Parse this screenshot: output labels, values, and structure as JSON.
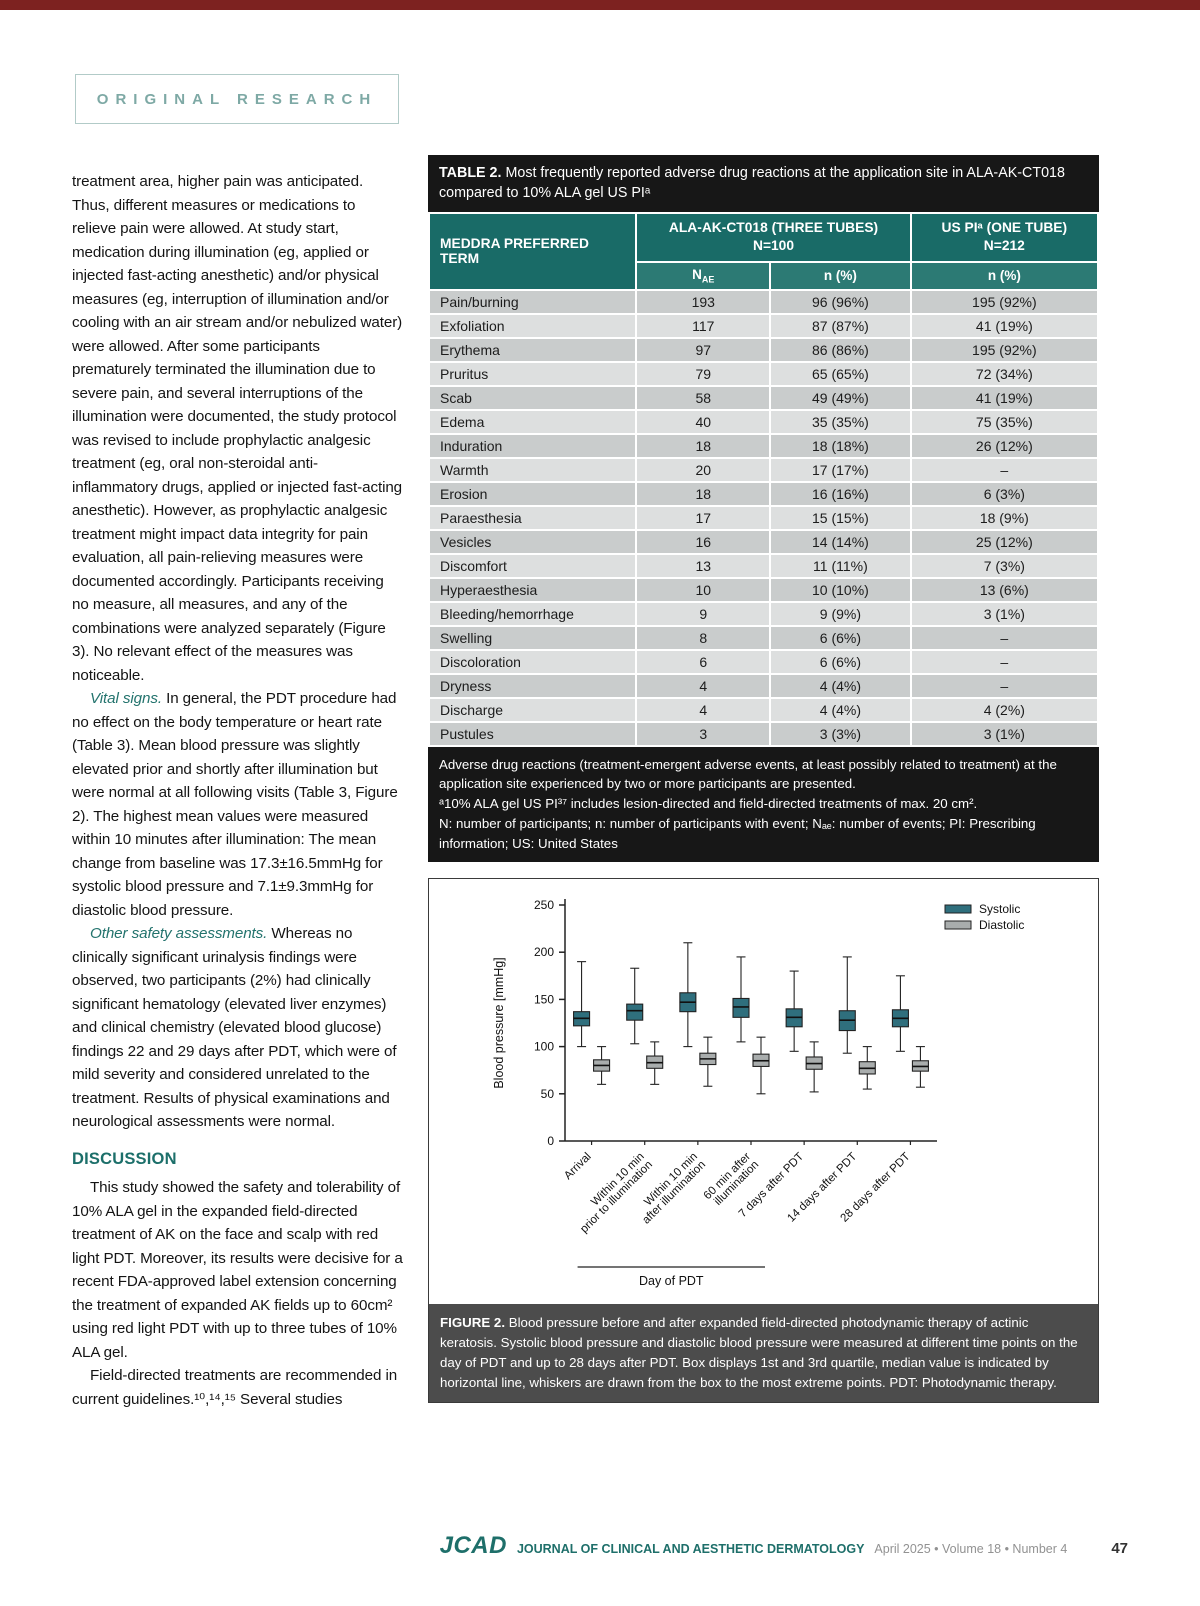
{
  "masthead": {
    "section_label": "ORIGINAL RESEARCH"
  },
  "article": {
    "p1": "treatment area, higher pain was anticipated. Thus, different measures or medications to relieve pain were allowed. At study start, medication during illumination (eg, applied or injected fast-acting anesthetic) and/or physical measures (eg, interruption of illumination and/or cooling with an air stream and/or nebulized water) were allowed. After some participants prematurely terminated the illumination due to severe pain, and several interruptions of the illumination were documented, the study protocol was revised to include prophylactic analgesic treatment (eg, oral non-steroidal anti-inflammatory drugs, applied or injected fast-acting anesthetic). However, as prophylactic analgesic treatment might impact data integrity for pain evaluation, all pain-relieving measures were documented accordingly. Participants receiving no measure, all measures, and any of the combinations were analyzed separately (Figure 3). No relevant effect of the measures was noticeable.",
    "p2_lead": "Vital signs.",
    "p2_text": " In general, the PDT procedure had no effect on the body temperature or heart rate (Table 3). Mean blood pressure was slightly elevated prior and shortly after illumination but were normal at all following visits (Table 3, Figure 2). The highest mean values were measured within 10 minutes after illumination: The mean change from baseline was 17.3±16.5mmHg for systolic blood pressure and 7.1±9.3mmHg for diastolic blood pressure.",
    "p3_lead": "Other safety assessments.",
    "p3_text": " Whereas no clinically significant urinalysis findings were observed, two participants (2%) had clinically significant hematology (elevated liver enzymes) and clinical chemistry (elevated blood glucose) findings 22 and 29 days after PDT, which were of mild severity and considered unrelated to the treatment. Results of physical examinations and neurological assessments were normal.",
    "discussion_heading": "DISCUSSION",
    "p4": "This study showed the safety and tolerability of 10% ALA gel in the expanded field-directed treatment of AK on the face and scalp with red light PDT. Moreover, its results were decisive for a recent FDA-approved label extension concerning the treatment of expanded AK fields up to 60cm² using red light PDT with up to three tubes of 10% ALA gel.",
    "p5": "Field-directed treatments are recommended in current guidelines.¹⁰,¹⁴,¹⁵ Several studies"
  },
  "table2": {
    "title_label": "TABLE 2.",
    "title_text": " Most frequently reported adverse drug reactions at the application site in ALA-AK-CT018 compared to 10% ALA gel US PIᵃ",
    "term_header": "MEDDRA PREFERRED TERM",
    "group1_line1": "ALA-AK-CT018 (THREE TUBES)",
    "group1_line2": "N=100",
    "group2_line1": "US PIᵃ (ONE TUBE)",
    "group2_line2": "N=212",
    "sub_n": "N",
    "sub_ae": "AE",
    "sub_npct1": "n (%)",
    "sub_npct2": "n (%)",
    "rows": [
      {
        "term": "Pain/burning",
        "nae": "193",
        "n1": "96 (96%)",
        "n2": "195 (92%)"
      },
      {
        "term": "Exfoliation",
        "nae": "117",
        "n1": "87 (87%)",
        "n2": "41 (19%)"
      },
      {
        "term": "Erythema",
        "nae": "97",
        "n1": "86 (86%)",
        "n2": "195 (92%)"
      },
      {
        "term": "Pruritus",
        "nae": "79",
        "n1": "65 (65%)",
        "n2": "72 (34%)"
      },
      {
        "term": "Scab",
        "nae": "58",
        "n1": "49 (49%)",
        "n2": "41 (19%)"
      },
      {
        "term": "Edema",
        "nae": "40",
        "n1": "35 (35%)",
        "n2": "75 (35%)"
      },
      {
        "term": "Induration",
        "nae": "18",
        "n1": "18 (18%)",
        "n2": "26 (12%)"
      },
      {
        "term": "Warmth",
        "nae": "20",
        "n1": "17 (17%)",
        "n2": "–"
      },
      {
        "term": "Erosion",
        "nae": "18",
        "n1": "16 (16%)",
        "n2": "6 (3%)"
      },
      {
        "term": "Paraesthesia",
        "nae": "17",
        "n1": "15 (15%)",
        "n2": "18 (9%)"
      },
      {
        "term": "Vesicles",
        "nae": "16",
        "n1": "14 (14%)",
        "n2": "25 (12%)"
      },
      {
        "term": "Discomfort",
        "nae": "13",
        "n1": "11 (11%)",
        "n2": "7 (3%)"
      },
      {
        "term": "Hyperaesthesia",
        "nae": "10",
        "n1": "10 (10%)",
        "n2": "13 (6%)"
      },
      {
        "term": "Bleeding/hemorrhage",
        "nae": "9",
        "n1": "9 (9%)",
        "n2": "3 (1%)"
      },
      {
        "term": "Swelling",
        "nae": "8",
        "n1": "6 (6%)",
        "n2": "–"
      },
      {
        "term": "Discoloration",
        "nae": "6",
        "n1": "6 (6%)",
        "n2": "–"
      },
      {
        "term": "Dryness",
        "nae": "4",
        "n1": "4 (4%)",
        "n2": "–"
      },
      {
        "term": "Discharge",
        "nae": "4",
        "n1": "4 (4%)",
        "n2": "4 (2%)"
      },
      {
        "term": "Pustules",
        "nae": "3",
        "n1": "3 (3%)",
        "n2": "3 (1%)"
      }
    ],
    "footnote1": "Adverse drug reactions (treatment-emergent adverse events, at least possibly related to treatment) at the application site experienced by two or more participants are presented.",
    "footnote2": "ᵃ10% ALA gel US PI³⁷ includes lesion-directed and field-directed treatments of max. 20 cm².",
    "footnote3": "N: number of participants; n: number of participants with event; Nₐₑ: number of events; PI: Prescribing information; US: United States"
  },
  "figure2": {
    "caption_label": "FIGURE 2.",
    "caption_text": " Blood pressure before and after expanded field-directed photodynamic therapy of actinic keratosis. Systolic blood pressure and diastolic blood pressure were measured at different time points on the day of PDT and up to 28 days after PDT. Box displays 1st and 3rd quartile, median value is indicated by horizontal line, whiskers are drawn from the box to the most extreme points. PDT: Photodynamic therapy."
  },
  "chart_data": {
    "type": "boxplot",
    "ylabel": "Blood pressure [mmHg]",
    "ylim": [
      0,
      250
    ],
    "yticks": [
      0,
      50,
      100,
      150,
      200,
      250
    ],
    "xlabel": "Day of PDT",
    "xlabel_bracket_span": [
      0,
      3
    ],
    "grid": false,
    "legend_position": "top-right",
    "categories": [
      [
        "Arrival"
      ],
      [
        "Within 10 min",
        "prior to illumination"
      ],
      [
        "Within 10 min",
        "after illumination"
      ],
      [
        "60 min after",
        "illumination"
      ],
      [
        "7 days after PDT"
      ],
      [
        "14 days after PDT"
      ],
      [
        "28 days after PDT"
      ]
    ],
    "series": [
      {
        "name": "Systolic",
        "color": "#2f6f7d",
        "boxes": [
          {
            "low": 100,
            "q1": 122,
            "median": 130,
            "q3": 137,
            "high": 190
          },
          {
            "low": 103,
            "q1": 128,
            "median": 138,
            "q3": 145,
            "high": 183
          },
          {
            "low": 100,
            "q1": 137,
            "median": 147,
            "q3": 157,
            "high": 210
          },
          {
            "low": 105,
            "q1": 131,
            "median": 142,
            "q3": 151,
            "high": 195
          },
          {
            "low": 95,
            "q1": 121,
            "median": 131,
            "q3": 140,
            "high": 180
          },
          {
            "low": 93,
            "q1": 117,
            "median": 128,
            "q3": 138,
            "high": 195
          },
          {
            "low": 95,
            "q1": 121,
            "median": 130,
            "q3": 139,
            "high": 175
          }
        ]
      },
      {
        "name": "Diastolic",
        "color": "#a9adad",
        "boxes": [
          {
            "low": 60,
            "q1": 74,
            "median": 80,
            "q3": 86,
            "high": 100
          },
          {
            "low": 60,
            "q1": 77,
            "median": 83,
            "q3": 90,
            "high": 105
          },
          {
            "low": 58,
            "q1": 81,
            "median": 87,
            "q3": 93,
            "high": 110
          },
          {
            "low": 50,
            "q1": 79,
            "median": 85,
            "q3": 92,
            "high": 110
          },
          {
            "low": 52,
            "q1": 76,
            "median": 82,
            "q3": 89,
            "high": 105
          },
          {
            "low": 55,
            "q1": 71,
            "median": 77,
            "q3": 84,
            "high": 100
          },
          {
            "low": 57,
            "q1": 74,
            "median": 79,
            "q3": 85,
            "high": 100
          }
        ]
      }
    ]
  },
  "footer": {
    "logo": "JCAD",
    "journal_name": "JOURNAL OF CLINICAL AND AESTHETIC DERMATOLOGY",
    "issue_info": "April 2025 • Volume 18 • Number 4",
    "page_number": "47"
  }
}
